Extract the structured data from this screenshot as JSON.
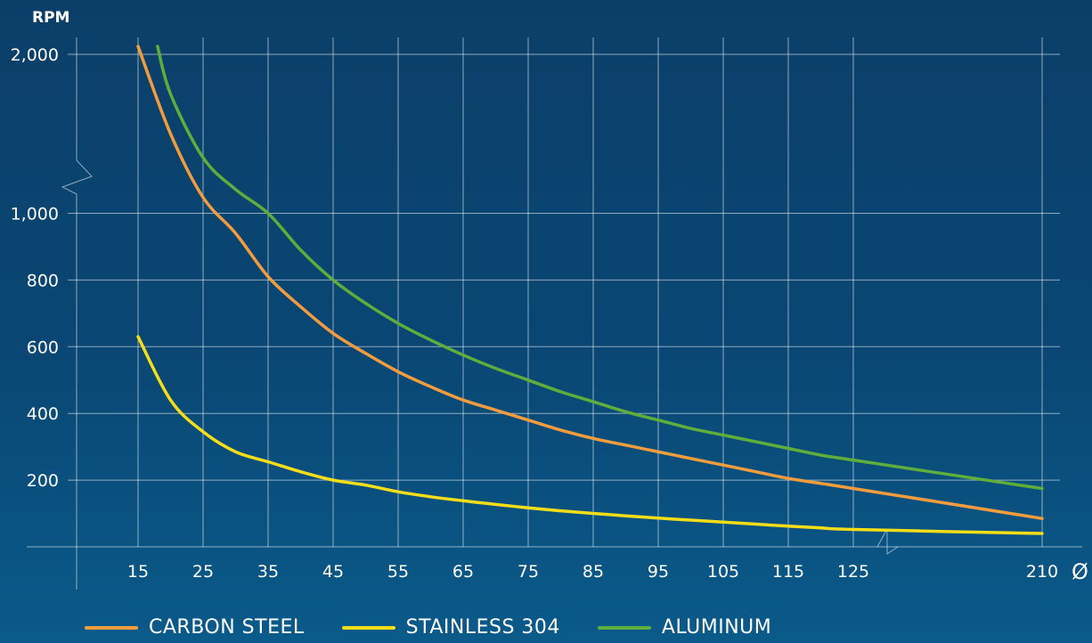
{
  "chart_data": {
    "type": "line",
    "ylabel": "RPM",
    "xlabel": "Ø",
    "x_ticks": [
      "15",
      "25",
      "35",
      "45",
      "55",
      "65",
      "75",
      "85",
      "95",
      "105",
      "115",
      "125",
      "210"
    ],
    "y_ticks": [
      "2,000",
      "1,000",
      "800",
      "600",
      "400",
      "200"
    ],
    "y_tick_values": [
      2000,
      1000,
      800,
      600,
      400,
      200
    ],
    "ylim": [
      0,
      2000
    ],
    "y_axis_break": "between 1,000 and 2,000",
    "x_axis_break": "between 125 and 210",
    "grid": true,
    "legend_position": "bottom",
    "series": [
      {
        "name": "CARBON STEEL",
        "color": "#f39c3d",
        "x": [
          15,
          20,
          25,
          30,
          35,
          40,
          45,
          50,
          55,
          60,
          65,
          70,
          75,
          80,
          85,
          90,
          95,
          100,
          105,
          110,
          115,
          120,
          125,
          210
        ],
        "y": [
          2050,
          1500,
          1100,
          940,
          810,
          720,
          640,
          580,
          525,
          480,
          440,
          410,
          380,
          350,
          325,
          305,
          285,
          265,
          245,
          225,
          205,
          190,
          175,
          85
        ]
      },
      {
        "name": "STAINLESS 304",
        "color": "#f5dd17",
        "x": [
          15,
          20,
          25,
          30,
          35,
          40,
          45,
          50,
          55,
          60,
          65,
          70,
          75,
          80,
          85,
          90,
          95,
          100,
          105,
          110,
          115,
          120,
          125,
          210
        ],
        "y": [
          630,
          440,
          345,
          285,
          255,
          225,
          200,
          185,
          165,
          150,
          138,
          127,
          117,
          108,
          100,
          93,
          86,
          80,
          74,
          68,
          62,
          57,
          52,
          40
        ]
      },
      {
        "name": "ALUMINUM",
        "color": "#5fad3b",
        "x": [
          18,
          20,
          25,
          30,
          35,
          40,
          45,
          50,
          55,
          60,
          65,
          70,
          75,
          80,
          85,
          90,
          95,
          100,
          105,
          110,
          115,
          120,
          125,
          210
        ],
        "y": [
          2050,
          1750,
          1350,
          1150,
          1000,
          890,
          800,
          730,
          670,
          620,
          575,
          535,
          500,
          465,
          435,
          405,
          380,
          355,
          335,
          315,
          295,
          275,
          260,
          175
        ]
      }
    ]
  }
}
